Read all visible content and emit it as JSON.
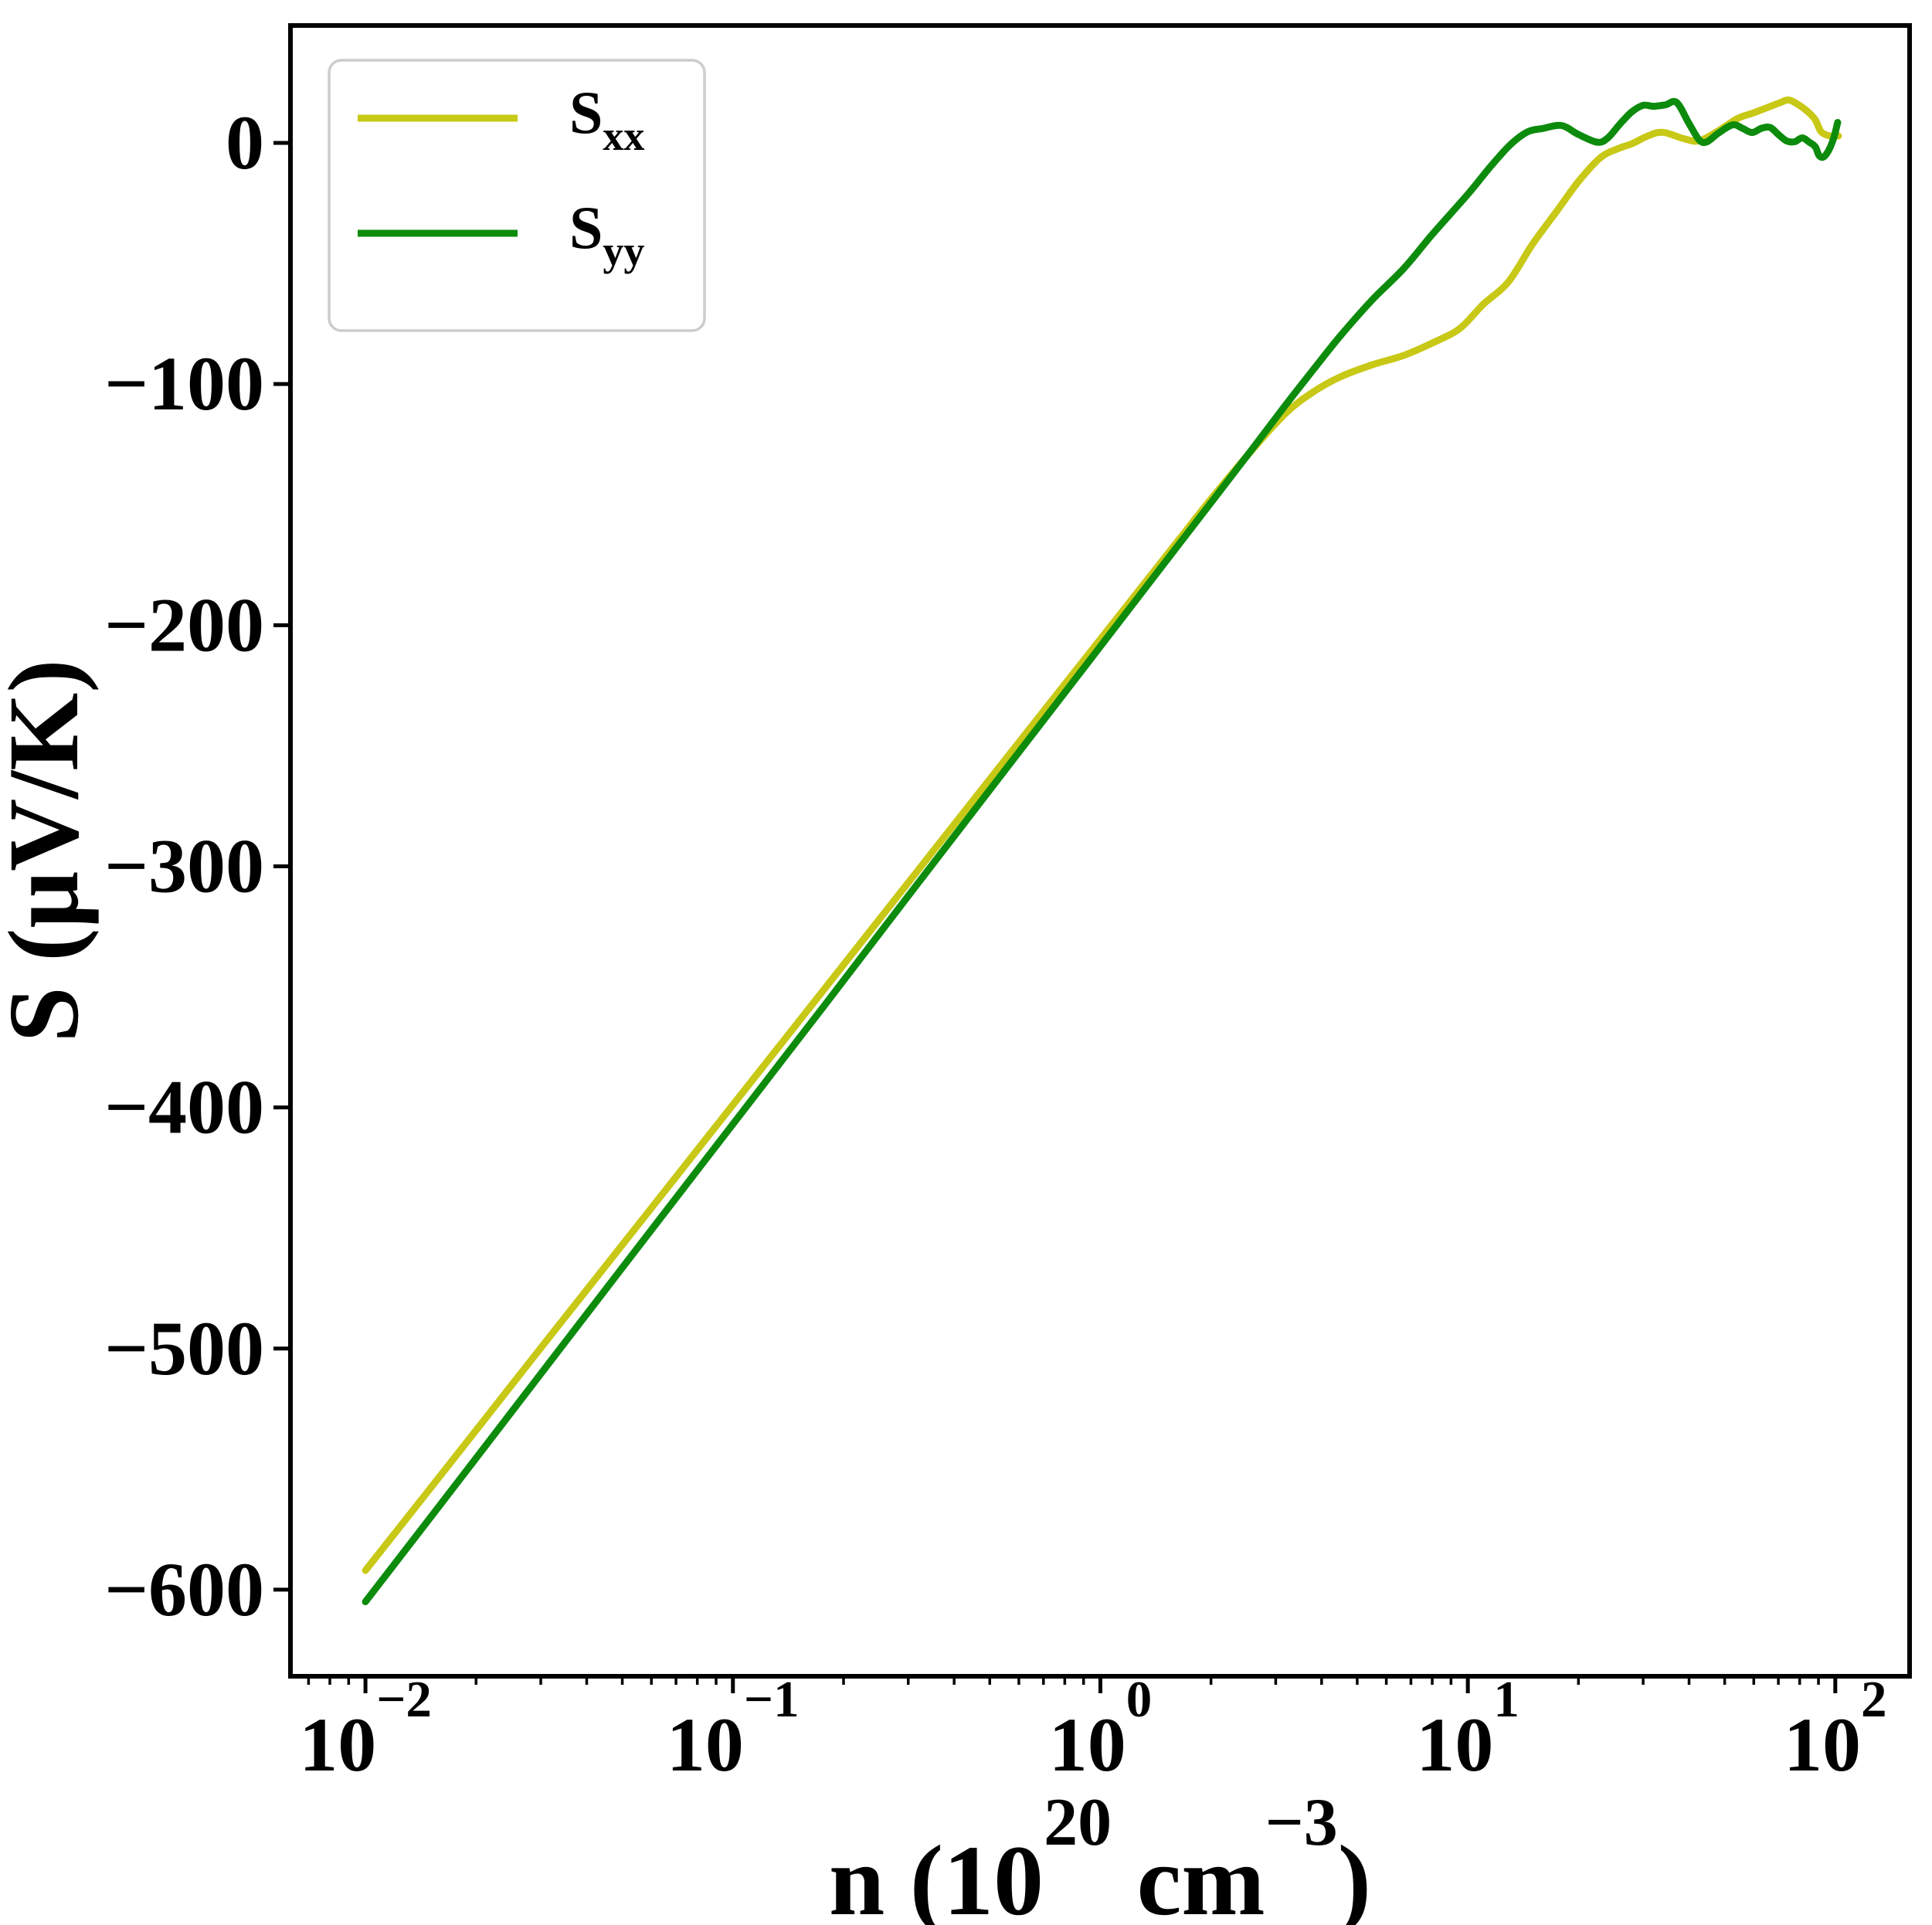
{
  "figure": {
    "background": "#ffffff",
    "frame_color": "#000000"
  },
  "chart_data": {
    "type": "line",
    "title": "",
    "ylabel": "S (μV/K)",
    "xlabel_parts": [
      {
        "t": "n (10",
        "sup": false
      },
      {
        "t": "20",
        "sup": true
      },
      {
        "t": " cm",
        "sup": false
      },
      {
        "t": "−3",
        "sup": true
      },
      {
        "t": ")",
        "sup": false
      }
    ],
    "x_axis": {
      "scale": "log",
      "min": 0.00625,
      "max": 159.3,
      "major_ticks": [
        0.01,
        0.1,
        1,
        10,
        100
      ],
      "major_tick_labels": [
        {
          "base": "10",
          "exp": "−2"
        },
        {
          "base": "10",
          "exp": "−1"
        },
        {
          "base": "10",
          "exp": "0"
        },
        {
          "base": "10",
          "exp": "1"
        },
        {
          "base": "10",
          "exp": "2"
        }
      ],
      "minor_subs": [
        2,
        3,
        4,
        5,
        6,
        7,
        8,
        9
      ],
      "grid": false
    },
    "y_axis": {
      "min": -635.9,
      "max": 48.7,
      "ticks": [
        0,
        -100,
        -200,
        -300,
        -400,
        -500,
        -600
      ],
      "tick_labels": [
        "0",
        "−100",
        "−200",
        "−300",
        "−400",
        "−500",
        "−600"
      ],
      "grid": false
    },
    "legend": {
      "position": "upper left",
      "entries": [
        {
          "label": "S",
          "subscript": "xx",
          "color": "#c8c816"
        },
        {
          "label": "S",
          "subscript": "yy",
          "color": "#0c8b0c"
        }
      ],
      "border_color": "#cccccc",
      "background": "#ffffff"
    },
    "series": [
      {
        "name": "Sxx",
        "color": "#c8c816",
        "points": [
          [
            0.01,
            -592
          ],
          [
            0.0178,
            -543.7
          ],
          [
            0.0316,
            -495.4
          ],
          [
            0.0562,
            -447.2
          ],
          [
            0.1,
            -398.9
          ],
          [
            0.178,
            -350.6
          ],
          [
            0.316,
            -302.4
          ],
          [
            0.562,
            -254.1
          ],
          [
            1.0,
            -205.8
          ],
          [
            1.5,
            -171.8
          ],
          [
            2.0,
            -147.7
          ],
          [
            2.6,
            -127.0
          ],
          [
            3.2,
            -112.0
          ],
          [
            3.8,
            -103.2
          ],
          [
            4.5,
            -97.0
          ],
          [
            5.5,
            -92.0
          ],
          [
            6.7,
            -88.1
          ],
          [
            8.0,
            -83.0
          ],
          [
            9.5,
            -77.0
          ],
          [
            11.0,
            -67.0
          ],
          [
            12.9,
            -57.6
          ],
          [
            15.0,
            -42.0
          ],
          [
            17.6,
            -27.6
          ],
          [
            20.0,
            -16.0
          ],
          [
            23.0,
            -6.0
          ],
          [
            26.0,
            -2.0
          ],
          [
            28.0,
            -0.3
          ],
          [
            31.0,
            3.0
          ],
          [
            34.0,
            4.4
          ],
          [
            39.0,
            1.6
          ],
          [
            42.7,
            0.9
          ],
          [
            48.0,
            5.0
          ],
          [
            54.3,
            10.2
          ],
          [
            60.0,
            12.5
          ],
          [
            66.2,
            15.0
          ],
          [
            71.0,
            16.8
          ],
          [
            74.9,
            17.8
          ],
          [
            80.0,
            15.5
          ],
          [
            84.4,
            12.8
          ],
          [
            88.2,
            9.6
          ],
          [
            91.3,
            4.8
          ],
          [
            95.0,
            3.2
          ],
          [
            98.0,
            2.8
          ],
          [
            102.0,
            2.9
          ]
        ]
      },
      {
        "name": "Syy",
        "color": "#0c8b0c",
        "points": [
          [
            0.01,
            -605
          ],
          [
            0.0178,
            -555.5
          ],
          [
            0.0316,
            -506.0
          ],
          [
            0.0562,
            -456.4
          ],
          [
            0.1,
            -406.9
          ],
          [
            0.178,
            -357.4
          ],
          [
            0.316,
            -307.8
          ],
          [
            0.562,
            -258.3
          ],
          [
            1.0,
            -208.8
          ],
          [
            1.5,
            -173.9
          ],
          [
            2.0,
            -149.2
          ],
          [
            2.6,
            -126.6
          ],
          [
            3.2,
            -108.5
          ],
          [
            3.8,
            -94.0
          ],
          [
            4.5,
            -80.0
          ],
          [
            5.5,
            -65.0
          ],
          [
            6.7,
            -52.0
          ],
          [
            8.0,
            -38.0
          ],
          [
            10.0,
            -21.3
          ],
          [
            11.5,
            -10.0
          ],
          [
            13.0,
            -1.0
          ],
          [
            14.5,
            4.5
          ],
          [
            16.0,
            6.0
          ],
          [
            18.0,
            7.2
          ],
          [
            20.0,
            3.5
          ],
          [
            22.5,
            0.3
          ],
          [
            24.0,
            2.0
          ],
          [
            26.0,
            8.0
          ],
          [
            28.0,
            13.0
          ],
          [
            30.0,
            15.6
          ],
          [
            32.0,
            15.2
          ],
          [
            34.5,
            15.8
          ],
          [
            37.0,
            16.8
          ],
          [
            40.0,
            8.0
          ],
          [
            42.7,
            1.1
          ],
          [
            44.8,
            0.5
          ],
          [
            48.0,
            4.0
          ],
          [
            52.6,
            7.5
          ],
          [
            56.0,
            6.0
          ],
          [
            59.4,
            4.3
          ],
          [
            63.0,
            6.1
          ],
          [
            66.5,
            6.4
          ],
          [
            70.0,
            3.5
          ],
          [
            73.8,
            0.8
          ],
          [
            77.5,
            0.5
          ],
          [
            81.3,
            2.1
          ],
          [
            85.0,
            0.3
          ],
          [
            88.2,
            -1.6
          ],
          [
            90.4,
            -5.3
          ],
          [
            93.0,
            -5.8
          ],
          [
            96.0,
            -3.0
          ],
          [
            99.0,
            2.0
          ],
          [
            101.5,
            8.5
          ]
        ]
      }
    ]
  }
}
